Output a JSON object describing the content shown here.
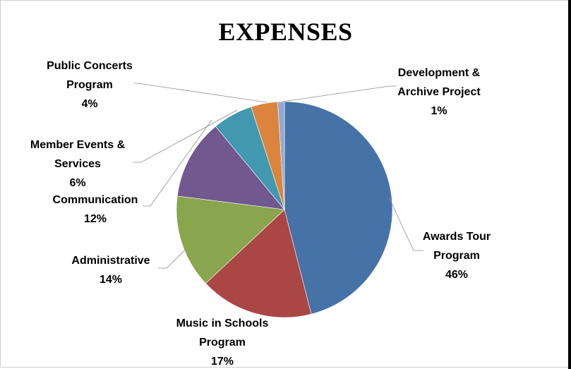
{
  "chart_data": {
    "type": "pie",
    "title": "EXPENSES",
    "start_angle_deg": 0,
    "direction": "clockwise",
    "slices": [
      {
        "label_lines": [
          "Awards Tour",
          "Program"
        ],
        "pct_text": "46%",
        "value": 46,
        "color": "#4572A7"
      },
      {
        "label_lines": [
          "Music in Schools",
          "Program"
        ],
        "pct_text": "17%",
        "value": 17,
        "color": "#AA4643"
      },
      {
        "label_lines": [
          "Administrative"
        ],
        "pct_text": "14%",
        "value": 14,
        "color": "#89A54E"
      },
      {
        "label_lines": [
          "Communication"
        ],
        "pct_text": "12%",
        "value": 12,
        "color": "#71588F"
      },
      {
        "label_lines": [
          "Member Events &",
          "Services"
        ],
        "pct_text": "6%",
        "value": 6,
        "color": "#4198AF"
      },
      {
        "label_lines": [
          "Public Concerts",
          "Program"
        ],
        "pct_text": "4%",
        "value": 4,
        "color": "#DB843D"
      },
      {
        "label_lines": [
          "Development &",
          "Archive Project"
        ],
        "pct_text": "1%",
        "value": 1,
        "color": "#93A9CF"
      }
    ]
  }
}
